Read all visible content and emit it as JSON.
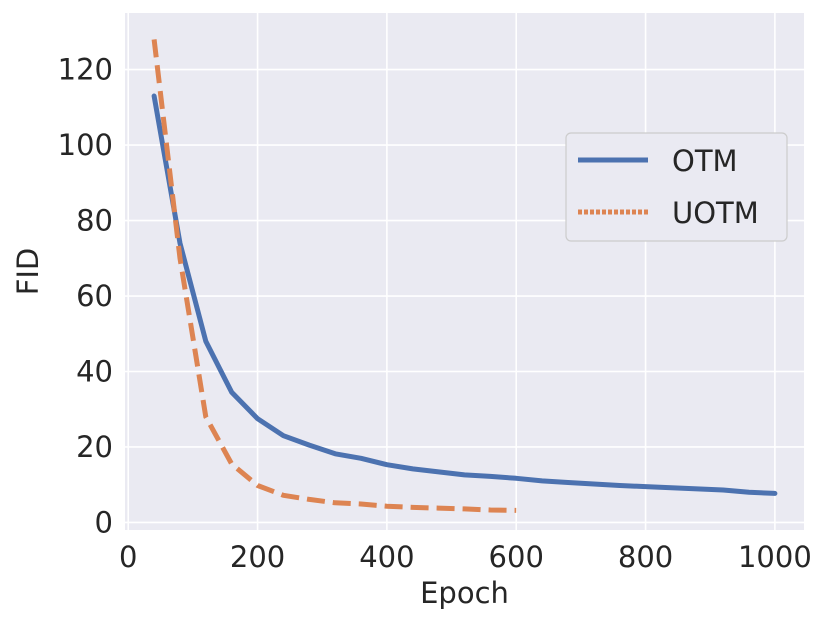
{
  "chart_data": {
    "type": "line",
    "title": "",
    "xlabel": "Epoch",
    "ylabel": "FID",
    "xlim": [
      -5,
      1045
    ],
    "ylim": [
      -2,
      135
    ],
    "xticks": [
      0,
      200,
      400,
      600,
      800,
      1000
    ],
    "yticks": [
      0,
      20,
      40,
      60,
      80,
      100,
      120
    ],
    "grid": true,
    "legend_position": "center-right",
    "series": [
      {
        "name": "OTM",
        "color": "#4c72b0",
        "style": "solid",
        "x": [
          40,
          80,
          120,
          160,
          200,
          240,
          280,
          320,
          360,
          400,
          440,
          480,
          520,
          560,
          600,
          640,
          680,
          720,
          760,
          800,
          840,
          880,
          920,
          960,
          1000
        ],
        "y": [
          113,
          74,
          48,
          34.5,
          27.5,
          23,
          20.5,
          18.2,
          17,
          15.3,
          14.2,
          13.4,
          12.6,
          12.2,
          11.7,
          11,
          10.6,
          10.2,
          9.8,
          9.5,
          9.2,
          8.9,
          8.6,
          8.0,
          7.7
        ]
      },
      {
        "name": "UOTM",
        "color": "#dd8452",
        "style": "dashed",
        "x": [
          40,
          80,
          120,
          160,
          200,
          240,
          280,
          320,
          360,
          400,
          440,
          480,
          520,
          560,
          600
        ],
        "y": [
          128,
          70,
          28,
          15.5,
          9.8,
          7.2,
          6.1,
          5.2,
          4.9,
          4.3,
          4.0,
          3.8,
          3.6,
          3.3,
          3.2
        ]
      }
    ]
  }
}
